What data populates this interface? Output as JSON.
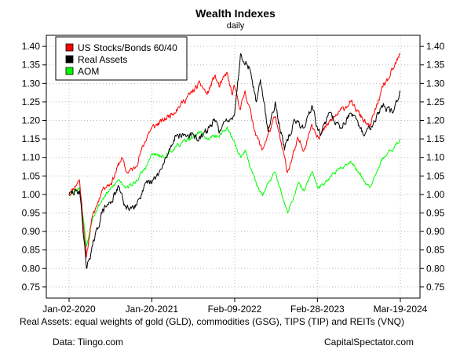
{
  "chart_data": {
    "type": "line",
    "title": "Wealth Indexes",
    "subtitle": "daily",
    "ylim": [
      0.72,
      1.43
    ],
    "y_ticks": [
      "0.75",
      "0.80",
      "0.85",
      "0.90",
      "0.95",
      "1.00",
      "1.05",
      "1.10",
      "1.15",
      "1.20",
      "1.25",
      "1.30",
      "1.35",
      "1.40"
    ],
    "x_ticks": [
      {
        "label": "Jan-02-2020",
        "date": "2020-01-02"
      },
      {
        "label": "Jan-20-2021",
        "date": "2021-01-20"
      },
      {
        "label": "Feb-09-2022",
        "date": "2022-02-09"
      },
      {
        "label": "Feb-28-2023",
        "date": "2023-02-28"
      },
      {
        "label": "Mar-19-2024",
        "date": "2024-03-19"
      }
    ],
    "grid": true,
    "legend_position": "top-left",
    "series": [
      {
        "name": "US Stocks/Bonds 60/40",
        "color": "#ff0000",
        "points": [
          [
            "2020-01-02",
            1.0
          ],
          [
            "2020-02-19",
            1.04
          ],
          [
            "2020-03-23",
            0.83
          ],
          [
            "2020-04-15",
            0.93
          ],
          [
            "2020-06-08",
            1.02
          ],
          [
            "2020-07-15",
            1.03
          ],
          [
            "2020-09-02",
            1.1
          ],
          [
            "2020-09-24",
            1.06
          ],
          [
            "2020-11-01",
            1.07
          ],
          [
            "2020-12-31",
            1.16
          ],
          [
            "2021-01-20",
            1.18
          ],
          [
            "2021-03-15",
            1.2
          ],
          [
            "2021-05-15",
            1.23
          ],
          [
            "2021-07-15",
            1.27
          ],
          [
            "2021-09-02",
            1.3
          ],
          [
            "2021-10-04",
            1.27
          ],
          [
            "2021-11-08",
            1.32
          ],
          [
            "2021-12-01",
            1.29
          ],
          [
            "2022-01-03",
            1.33
          ],
          [
            "2022-01-27",
            1.27
          ],
          [
            "2022-02-09",
            1.29
          ],
          [
            "2022-03-08",
            1.23
          ],
          [
            "2022-03-29",
            1.28
          ],
          [
            "2022-05-20",
            1.16
          ],
          [
            "2022-06-16",
            1.12
          ],
          [
            "2022-08-16",
            1.21
          ],
          [
            "2022-10-12",
            1.06
          ],
          [
            "2022-11-15",
            1.12
          ],
          [
            "2022-12-01",
            1.15
          ],
          [
            "2022-12-28",
            1.12
          ],
          [
            "2023-02-02",
            1.19
          ],
          [
            "2023-02-28",
            1.16
          ],
          [
            "2023-03-13",
            1.16
          ],
          [
            "2023-05-01",
            1.2
          ],
          [
            "2023-07-31",
            1.25
          ],
          [
            "2023-10-27",
            1.18
          ],
          [
            "2023-12-29",
            1.29
          ],
          [
            "2024-02-01",
            1.32
          ],
          [
            "2024-03-19",
            1.38
          ]
        ]
      },
      {
        "name": "Real Assets",
        "color": "#000000",
        "points": [
          [
            "2020-01-02",
            1.0
          ],
          [
            "2020-02-20",
            1.01
          ],
          [
            "2020-03-23",
            0.8
          ],
          [
            "2020-04-20",
            0.86
          ],
          [
            "2020-06-08",
            0.96
          ],
          [
            "2020-07-15",
            0.98
          ],
          [
            "2020-08-20",
            1.02
          ],
          [
            "2020-09-24",
            0.96
          ],
          [
            "2020-11-01",
            0.97
          ],
          [
            "2020-12-31",
            1.03
          ],
          [
            "2021-01-20",
            1.03
          ],
          [
            "2021-03-08",
            1.07
          ],
          [
            "2021-05-10",
            1.16
          ],
          [
            "2021-07-15",
            1.16
          ],
          [
            "2021-09-02",
            1.15
          ],
          [
            "2021-11-08",
            1.2
          ],
          [
            "2021-12-01",
            1.17
          ],
          [
            "2022-01-03",
            1.2
          ],
          [
            "2022-02-09",
            1.22
          ],
          [
            "2022-03-08",
            1.38
          ],
          [
            "2022-04-20",
            1.34
          ],
          [
            "2022-05-20",
            1.25
          ],
          [
            "2022-06-08",
            1.31
          ],
          [
            "2022-07-14",
            1.17
          ],
          [
            "2022-08-16",
            1.25
          ],
          [
            "2022-09-28",
            1.12
          ],
          [
            "2022-11-15",
            1.2
          ],
          [
            "2022-12-28",
            1.18
          ],
          [
            "2023-02-02",
            1.24
          ],
          [
            "2023-02-28",
            1.18
          ],
          [
            "2023-03-13",
            1.16
          ],
          [
            "2023-04-20",
            1.22
          ],
          [
            "2023-06-15",
            1.18
          ],
          [
            "2023-07-31",
            1.22
          ],
          [
            "2023-10-05",
            1.16
          ],
          [
            "2023-12-29",
            1.24
          ],
          [
            "2024-02-13",
            1.22
          ],
          [
            "2024-03-19",
            1.28
          ]
        ]
      },
      {
        "name": "AOM",
        "color": "#00ff00",
        "points": [
          [
            "2020-01-02",
            1.0
          ],
          [
            "2020-02-20",
            1.02
          ],
          [
            "2020-03-23",
            0.86
          ],
          [
            "2020-04-20",
            0.94
          ],
          [
            "2020-06-08",
            0.99
          ],
          [
            "2020-08-20",
            1.04
          ],
          [
            "2020-09-24",
            1.02
          ],
          [
            "2020-11-01",
            1.03
          ],
          [
            "2020-12-31",
            1.08
          ],
          [
            "2021-01-20",
            1.11
          ],
          [
            "2021-03-15",
            1.1
          ],
          [
            "2021-05-15",
            1.13
          ],
          [
            "2021-07-15",
            1.15
          ],
          [
            "2021-09-02",
            1.17
          ],
          [
            "2021-10-04",
            1.15
          ],
          [
            "2021-12-01",
            1.16
          ],
          [
            "2022-01-03",
            1.18
          ],
          [
            "2022-02-09",
            1.14
          ],
          [
            "2022-03-08",
            1.1
          ],
          [
            "2022-03-29",
            1.12
          ],
          [
            "2022-05-20",
            1.03
          ],
          [
            "2022-06-16",
            1.0
          ],
          [
            "2022-08-16",
            1.06
          ],
          [
            "2022-10-12",
            0.95
          ],
          [
            "2022-11-15",
            1.0
          ],
          [
            "2022-12-01",
            1.03
          ],
          [
            "2022-12-28",
            1.01
          ],
          [
            "2023-02-02",
            1.06
          ],
          [
            "2023-02-28",
            1.02
          ],
          [
            "2023-03-13",
            1.02
          ],
          [
            "2023-05-01",
            1.05
          ],
          [
            "2023-07-31",
            1.09
          ],
          [
            "2023-10-27",
            1.02
          ],
          [
            "2023-12-29",
            1.1
          ],
          [
            "2024-02-13",
            1.12
          ],
          [
            "2024-03-19",
            1.15
          ]
        ]
      }
    ]
  },
  "notes": {
    "footnote": "Real Assets: equal weights of gold (GLD), commodities (GSG), TIPS (TIP) and REITs (VNQ)",
    "source": "Data: Tiingo.com",
    "credit": "CapitalSpectator.com"
  }
}
